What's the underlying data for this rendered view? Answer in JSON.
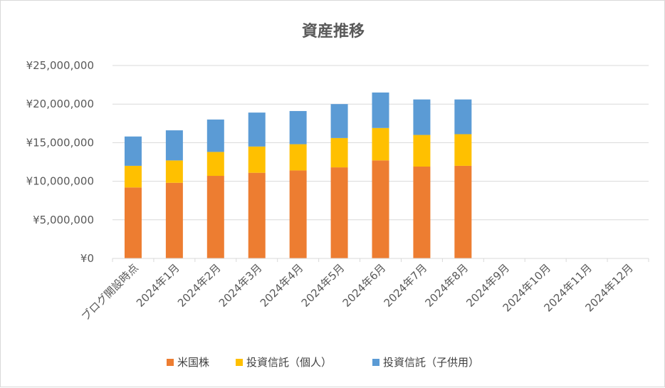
{
  "chart_data": {
    "type": "bar",
    "stacked": true,
    "title": "資産推移",
    "xlabel": "",
    "ylabel": "",
    "ylim": [
      0,
      25000000
    ],
    "y_ticks": [
      0,
      5000000,
      10000000,
      15000000,
      20000000,
      25000000
    ],
    "y_tick_labels": [
      "¥0",
      "¥5,000,000",
      "¥10,000,000",
      "¥15,000,000",
      "¥20,000,000",
      "¥25,000,000"
    ],
    "grid": true,
    "legend_position": "bottom",
    "categories": [
      "ブログ開設時点",
      "2024年1月",
      "2024年2月",
      "2024年3月",
      "2024年4月",
      "2024年5月",
      "2024年6月",
      "2024年7月",
      "2024年8月",
      "2024年9月",
      "2024年10月",
      "2024年11月",
      "2024年12月"
    ],
    "series": [
      {
        "name": "米国株",
        "color": "#ed7d31",
        "values": [
          9200000,
          9800000,
          10700000,
          11100000,
          11400000,
          11800000,
          12700000,
          11900000,
          12000000,
          null,
          null,
          null,
          null
        ]
      },
      {
        "name": "投資信託（個人）",
        "color": "#ffc000",
        "values": [
          2800000,
          2900000,
          3100000,
          3400000,
          3400000,
          3800000,
          4200000,
          4100000,
          4100000,
          null,
          null,
          null,
          null
        ]
      },
      {
        "name": "投資信託（子供用）",
        "color": "#5b9bd5",
        "values": [
          3800000,
          3900000,
          4200000,
          4400000,
          4300000,
          4400000,
          4600000,
          4600000,
          4500000,
          null,
          null,
          null,
          null
        ]
      }
    ]
  }
}
